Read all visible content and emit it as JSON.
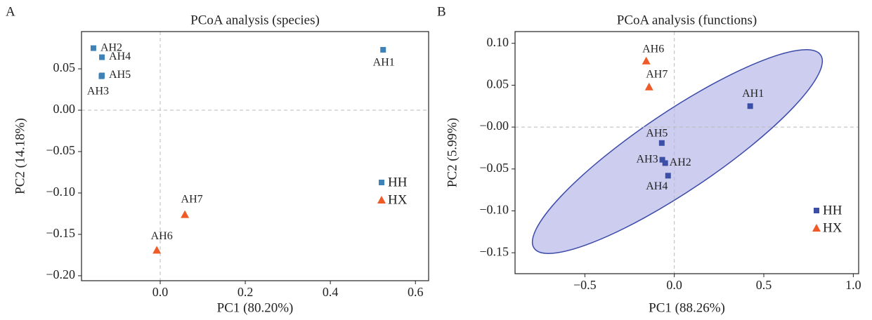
{
  "chart_data": [
    {
      "type": "scatter",
      "panel_label": "A",
      "title": "PCoA analysis (species)",
      "xlabel": "PC1 (80.20%)",
      "ylabel": "PC2 (14.18%)",
      "xlim": [
        -0.185,
        0.631
      ],
      "ylim": [
        -0.206,
        0.095
      ],
      "xticks": [
        {
          "value": 0,
          "label": "0.0"
        },
        0.2,
        0.4,
        0.6
      ],
      "yticks": [
        0.05,
        {
          "value": 0,
          "label": "0.00"
        },
        {
          "value": -0.05,
          "label": "−0.05"
        },
        {
          "value": -0.1,
          "label": "−0.10"
        },
        {
          "value": -0.15,
          "label": "−0.15"
        },
        {
          "value": -0.2,
          "label": "−0.20"
        }
      ],
      "zero_lines": true,
      "legend": "lower right",
      "series": [
        {
          "name": "HH",
          "color": "#3f82b8",
          "marker": "square",
          "labels": [
            "AH1",
            "AH2",
            "AH3",
            "AH4",
            "AH5"
          ],
          "x": [
            0.524,
            -0.157,
            -0.138,
            -0.137,
            -0.137
          ],
          "y": [
            0.073,
            0.075,
            0.041,
            0.064,
            0.042
          ]
        },
        {
          "name": "HX",
          "color": "#f05a28",
          "marker": "triangle",
          "labels": [
            "AH6",
            "AH7"
          ],
          "x": [
            -0.008,
            0.058
          ],
          "y": [
            -0.169,
            -0.126
          ]
        }
      ]
    },
    {
      "type": "scatter",
      "panel_label": "B",
      "title": "PCoA analysis (functions)",
      "xlabel": "PC1 (88.26%)",
      "ylabel": "PC2 (5.99%)",
      "xlim": [
        -0.89,
        1.03
      ],
      "ylim": [
        -0.175,
        0.114
      ],
      "xticks": [
        {
          "value": -0.5,
          "label": "−0.5"
        },
        {
          "value": 0,
          "label": "0.0"
        },
        0.5,
        {
          "value": 1,
          "label": "1.0"
        }
      ],
      "yticks": [
        {
          "value": 0.1,
          "label": "0.10"
        },
        0.05,
        {
          "value": 0,
          "label": "−0.00"
        },
        {
          "value": -0.05,
          "label": "−0.05"
        },
        {
          "value": -0.1,
          "label": "−0.10"
        },
        {
          "value": -0.15,
          "label": "−0.15"
        }
      ],
      "zero_lines": true,
      "legend": "lower right",
      "series": [
        {
          "name": "HH",
          "color": "#3c4fa6",
          "marker": "square",
          "labels": [
            "AH1",
            "AH2",
            "AH3",
            "AH4",
            "AH5"
          ],
          "x": [
            0.424,
            -0.051,
            -0.067,
            -0.035,
            -0.07
          ],
          "y": [
            0.025,
            -0.043,
            -0.039,
            -0.058,
            -0.019
          ]
        },
        {
          "name": "HX",
          "color": "#f05a28",
          "marker": "triangle",
          "labels": [
            "AH6",
            "AH7"
          ],
          "x": [
            -0.157,
            -0.141
          ],
          "y": [
            0.079,
            0.048
          ]
        }
      ]
    }
  ]
}
